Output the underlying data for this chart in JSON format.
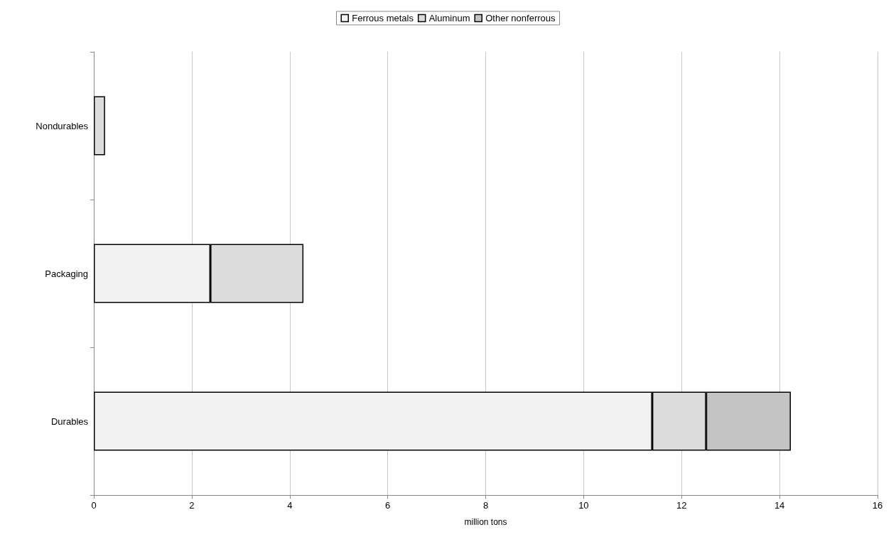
{
  "chart_data": {
    "type": "bar",
    "orientation": "horizontal",
    "stacked": true,
    "categories": [
      "Nondurables",
      "Packaging",
      "Durables"
    ],
    "series": [
      {
        "name": "Ferrous metals",
        "color": "#f2f2f2",
        "values": [
          null,
          2.38,
          11.4
        ]
      },
      {
        "name": "Aluminum",
        "color": "#dcdcdc",
        "values": [
          0.23,
          1.9,
          1.1
        ]
      },
      {
        "name": "Other nonferrous",
        "color": "#c4c4c4",
        "values": [
          null,
          null,
          1.73
        ]
      }
    ],
    "xlabel": "million tons",
    "xlim": [
      0,
      16
    ],
    "xticks": [
      0,
      2,
      4,
      6,
      8,
      10,
      12,
      14,
      16
    ],
    "grid": "x",
    "legend": "top"
  }
}
